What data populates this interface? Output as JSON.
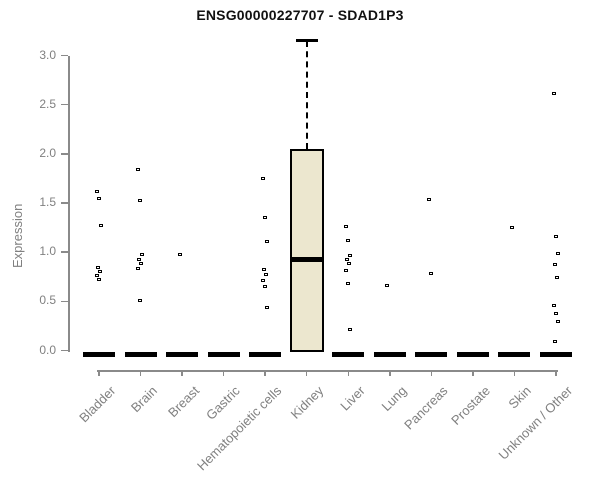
{
  "chart_data": {
    "type": "boxplot",
    "title": "ENSG00000227707 - SDAD1P3",
    "ylabel": "Expression",
    "xlabel": "",
    "ylim": [
      0,
      3.17
    ],
    "yticks": [
      0.0,
      0.5,
      1.0,
      1.5,
      2.0,
      2.5,
      3.0
    ],
    "ytick_labels": [
      "0.0",
      "0.5",
      "1.0",
      "1.5",
      "2.0",
      "2.5",
      "3.0"
    ],
    "grid": false,
    "legend": "none",
    "point_style": "open-square",
    "categories": [
      "Bladder",
      "Brain",
      "Breast",
      "Gastric",
      "Hematopoietic cells",
      "Kidney",
      "Liver",
      "Lung",
      "Pancreas",
      "Prostate",
      "Skin",
      "Unknown / Other"
    ],
    "groups": [
      {
        "label": "Bladder",
        "zero_bar": 0.0,
        "points": [
          1.61,
          1.54,
          1.27,
          0.84,
          0.8,
          0.76,
          0.72
        ]
      },
      {
        "label": "Brain",
        "zero_bar": 0.0,
        "points": [
          1.84,
          1.52,
          0.97,
          0.92,
          0.88,
          0.83,
          0.5
        ]
      },
      {
        "label": "Breast",
        "zero_bar": 0.0,
        "points": [
          0.97
        ]
      },
      {
        "label": "Gastric",
        "zero_bar": 0.0,
        "points": []
      },
      {
        "label": "Hematopoietic cells",
        "zero_bar": 0.0,
        "points": [
          1.74,
          1.35,
          1.1,
          0.82,
          0.77,
          0.71,
          0.65,
          0.43
        ]
      },
      {
        "label": "Kidney",
        "zero_bar": null,
        "points": [],
        "box": {
          "whisker_high": 3.15,
          "q3": 2.05,
          "median": 0.93,
          "q1": 0.0,
          "whisker_low": 0.0
        }
      },
      {
        "label": "Liver",
        "zero_bar": 0.0,
        "points": [
          1.26,
          1.11,
          0.96,
          0.92,
          0.88,
          0.81,
          0.68,
          0.21
        ]
      },
      {
        "label": "Lung",
        "zero_bar": 0.0,
        "points": [
          0.66
        ]
      },
      {
        "label": "Pancreas",
        "zero_bar": 0.0,
        "points": [
          1.53,
          0.78
        ]
      },
      {
        "label": "Prostate",
        "zero_bar": 0.0,
        "points": []
      },
      {
        "label": "Skin",
        "zero_bar": 0.0,
        "points": [
          1.25
        ]
      },
      {
        "label": "Unknown / Other",
        "zero_bar": 0.0,
        "points": [
          2.61,
          1.15,
          0.98,
          0.87,
          0.74,
          0.45,
          0.37,
          0.29,
          0.09
        ]
      }
    ],
    "colors": {
      "box_fill": "#ece7cf",
      "box_border": "#000000",
      "bar": "#000000",
      "point_fill": "#ffffff",
      "point_border": "#000000",
      "axis": "#8a8a8a",
      "axis_text": "#808080",
      "title_text": "#111111",
      "background": "#ffffff"
    }
  }
}
